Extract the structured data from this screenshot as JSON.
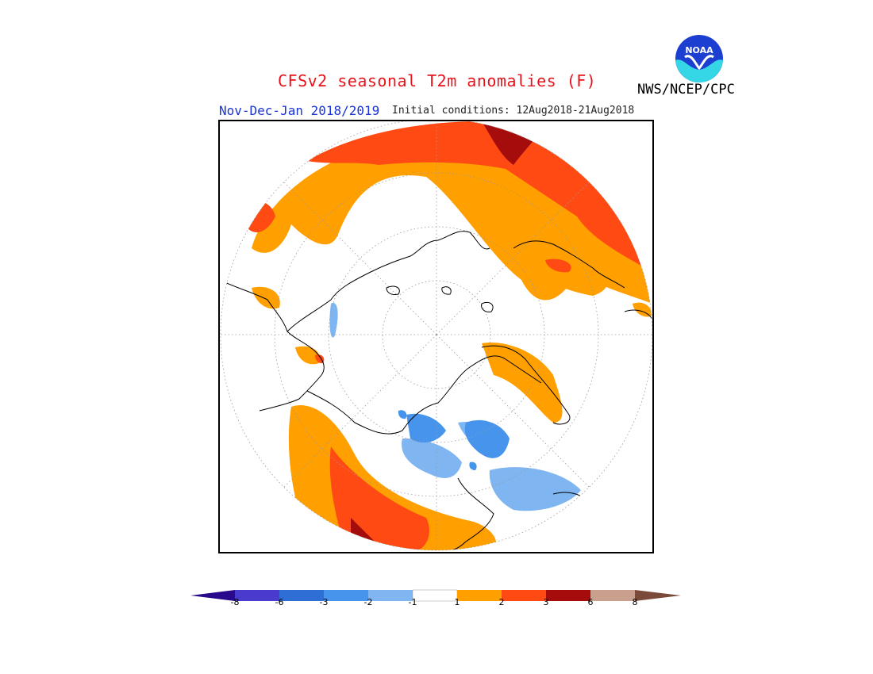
{
  "title": "CFSv2 seasonal T2m anomalies (F)",
  "period": "Nov-Dec-Jan 2018/2019",
  "initial_conditions": "Initial conditions: 12Aug2018-21Aug2018",
  "agency": "NWS/NCEP/CPC",
  "logo": {
    "text": "NOAA",
    "icon": "noaa-logo"
  },
  "map": {
    "projection": "north-polar-stereographic",
    "graticule": true
  },
  "legend": {
    "ticks": [
      "-8",
      "-6",
      "-3",
      "-2",
      "-1",
      "1",
      "2",
      "3",
      "6",
      "8"
    ],
    "colors": [
      "#2a0a8c",
      "#4a3bcf",
      "#2e6fd6",
      "#4694ec",
      "#7fb6f2",
      "#ffffff",
      "#ff9f00",
      "#ff4a14",
      "#a50c0c",
      "#c9a08e",
      "#7a4a3a"
    ]
  }
}
